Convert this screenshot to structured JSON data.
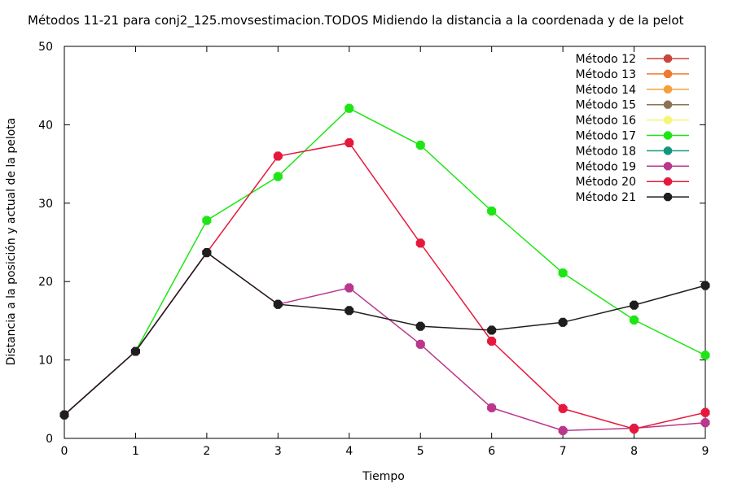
{
  "chart_data": {
    "type": "line",
    "title": "Métodos 11-21 para conj2_125.movsestimacion.TODOS Midiendo la distancia a la coordenada y de la pelot",
    "xlabel": "Tiempo",
    "ylabel": "Distancia a la posición y actual de la pelota",
    "xlim": [
      0,
      9
    ],
    "ylim": [
      0,
      50
    ],
    "x_ticks": [
      "0",
      "1",
      "2",
      "3",
      "4",
      "5",
      "6",
      "7",
      "8",
      "9"
    ],
    "y_ticks": [
      "0",
      "10",
      "20",
      "30",
      "40",
      "50"
    ],
    "grid": false,
    "legend_position": "top-right",
    "series": [
      {
        "name": "Método 12",
        "color": "#c8463c",
        "x": [],
        "values": []
      },
      {
        "name": "Método 13",
        "color": "#f07832",
        "x": [],
        "values": []
      },
      {
        "name": "Método 14",
        "color": "#f5a03c",
        "x": [],
        "values": []
      },
      {
        "name": "Método 15",
        "color": "#8c7355",
        "x": [],
        "values": []
      },
      {
        "name": "Método 16",
        "color": "#f5f578",
        "x": [],
        "values": []
      },
      {
        "name": "Método 17",
        "color": "#1ee614",
        "x": [
          0,
          1,
          2,
          3,
          4,
          5,
          6,
          7,
          8,
          9
        ],
        "values": [
          3.0,
          11.1,
          27.8,
          33.4,
          42.1,
          37.4,
          29.0,
          21.1,
          15.1,
          10.6
        ]
      },
      {
        "name": "Método 18",
        "color": "#14967d",
        "x": [],
        "values": []
      },
      {
        "name": "Método 19",
        "color": "#b9378c",
        "x": [
          0,
          1,
          2,
          3,
          4,
          5,
          6,
          7,
          8,
          9
        ],
        "values": [
          3.0,
          11.1,
          23.7,
          17.1,
          19.2,
          12.0,
          3.9,
          1.0,
          1.3,
          2.0
        ]
      },
      {
        "name": "Método 20",
        "color": "#e6193c",
        "x": [
          0,
          1,
          2,
          3,
          4,
          5,
          6,
          7,
          8,
          9
        ],
        "values": [
          3.0,
          11.1,
          23.7,
          36.0,
          37.7,
          24.9,
          12.4,
          3.8,
          1.2,
          3.3
        ]
      },
      {
        "name": "Método 21",
        "color": "#1e1e1e",
        "x": [
          0,
          1,
          2,
          3,
          4,
          5,
          6,
          7,
          8,
          9
        ],
        "values": [
          3.0,
          11.1,
          23.7,
          17.1,
          16.3,
          14.3,
          13.8,
          14.8,
          17.0,
          19.5
        ]
      }
    ]
  }
}
